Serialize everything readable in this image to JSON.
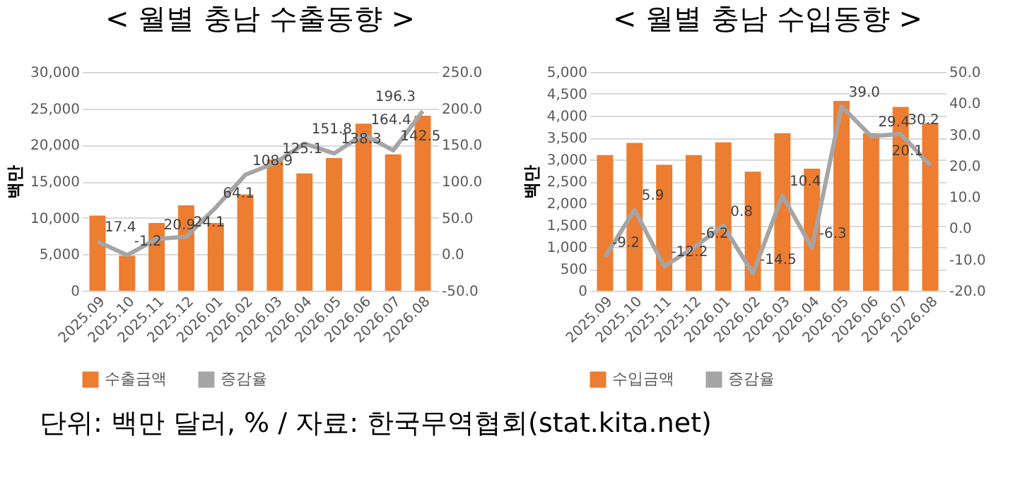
{
  "chart_data": [
    {
      "type": "bar",
      "title": "< 월별 충남 수출동향 >",
      "ylabel": "백만",
      "categories": [
        "2025.09",
        "2025.10",
        "2025.11",
        "2025.12",
        "2026.01",
        "2026.02",
        "2026.03",
        "2026.04",
        "2026.05",
        "2026.06",
        "2026.07",
        "2026.08"
      ],
      "series": [
        {
          "name": "수출금액",
          "color": "#ed7d31",
          "values": [
            10300,
            4800,
            9300,
            11700,
            9300,
            13200,
            18000,
            16100,
            18200,
            22900,
            18700,
            24000
          ]
        },
        {
          "name": "증감율",
          "type": "line",
          "axis": "y2",
          "color": "#a5a5a5",
          "values": [
            17.4,
            -1.2,
            20.9,
            24.1,
            64.1,
            108.9,
            125.1,
            151.8,
            138.3,
            164.4,
            142.5,
            196.3
          ],
          "value_labels": [
            "17.4",
            "-1.2",
            "20.9",
            "24.1",
            "64.1",
            "108.9",
            "125.1",
            "151.8",
            "138.3",
            "164.4",
            "142.5",
            "196.3"
          ]
        }
      ],
      "ylim": [
        0,
        30000
      ],
      "yticks": [
        0,
        {
          "value": 5000,
          "label": "5,000"
        },
        {
          "value": 10000,
          "label": "10,000"
        },
        {
          "value": 15000,
          "label": "15,000"
        },
        {
          "value": 20000,
          "label": "20,000"
        },
        {
          "value": 25000,
          "label": "25,000"
        },
        {
          "value": 30000,
          "label": "30,000"
        }
      ],
      "y2lim": [
        -50,
        250
      ],
      "y2ticks": [
        {
          "value": -50,
          "label": "-50.0"
        },
        {
          "value": 0,
          "label": "0.0"
        },
        {
          "value": 50,
          "label": "50.0"
        },
        {
          "value": 100,
          "label": "100.0"
        },
        {
          "value": 150,
          "label": "150.0"
        },
        {
          "value": 200,
          "label": "200.0"
        },
        {
          "value": 250,
          "label": "250.0"
        }
      ],
      "grid": "y",
      "legend": "bottom",
      "annotations": [
        "단위: 백만 달러, % / 자료: 한국무역협회(stat.kita.net)"
      ]
    },
    {
      "type": "bar",
      "title": "< 월별 충남 수입동향 >",
      "ylabel": "백만",
      "categories": [
        "2025.09",
        "2025.10",
        "2025.11",
        "2025.12",
        "2026.01",
        "2026.02",
        "2026.03",
        "2026.04",
        "2026.05",
        "2026.06",
        "2026.07",
        "2026.08"
      ],
      "series": [
        {
          "name": "수입금액",
          "color": "#ed7d31",
          "values": [
            3100,
            3380,
            2880,
            3100,
            3390,
            2720,
            3600,
            2790,
            4340,
            3600,
            4200,
            3830
          ]
        },
        {
          "name": "증감율",
          "type": "line",
          "axis": "y2",
          "color": "#a5a5a5",
          "values": [
            -9.2,
            5.9,
            -12.2,
            -6.2,
            0.8,
            -14.5,
            10.4,
            -6.3,
            39.0,
            29.4,
            30.2,
            20.1
          ],
          "value_labels": [
            "-9.2",
            "5.9",
            "-12.2",
            "-6.2",
            "0.8",
            "-14.5",
            "10.4",
            "-6.3",
            "39.0",
            "29.4",
            "30.2",
            "20.1"
          ]
        }
      ],
      "ylim": [
        0,
        5000
      ],
      "yticks": [
        0,
        {
          "value": 500,
          "label": "500"
        },
        {
          "value": 1000,
          "label": "1,000"
        },
        {
          "value": 1500,
          "label": "1,500"
        },
        {
          "value": 2000,
          "label": "2,000"
        },
        {
          "value": 2500,
          "label": "2,500"
        },
        {
          "value": 3000,
          "label": "3,000"
        },
        {
          "value": 3500,
          "label": "3,500"
        },
        {
          "value": 4000,
          "label": "4,000"
        },
        {
          "value": 4500,
          "label": "4,500"
        },
        {
          "value": 5000,
          "label": "5,000"
        }
      ],
      "y2lim": [
        -20,
        50
      ],
      "y2ticks": [
        {
          "value": -20,
          "label": "-20.0"
        },
        {
          "value": -10,
          "label": "-10.0"
        },
        {
          "value": 0,
          "label": "0.0"
        },
        {
          "value": 10,
          "label": "10.0"
        },
        {
          "value": 20,
          "label": "20.0"
        },
        {
          "value": 30,
          "label": "30.0"
        },
        {
          "value": 40,
          "label": "40.0"
        },
        {
          "value": 50,
          "label": "50.0"
        }
      ],
      "grid": "y",
      "legend": "bottom"
    }
  ]
}
